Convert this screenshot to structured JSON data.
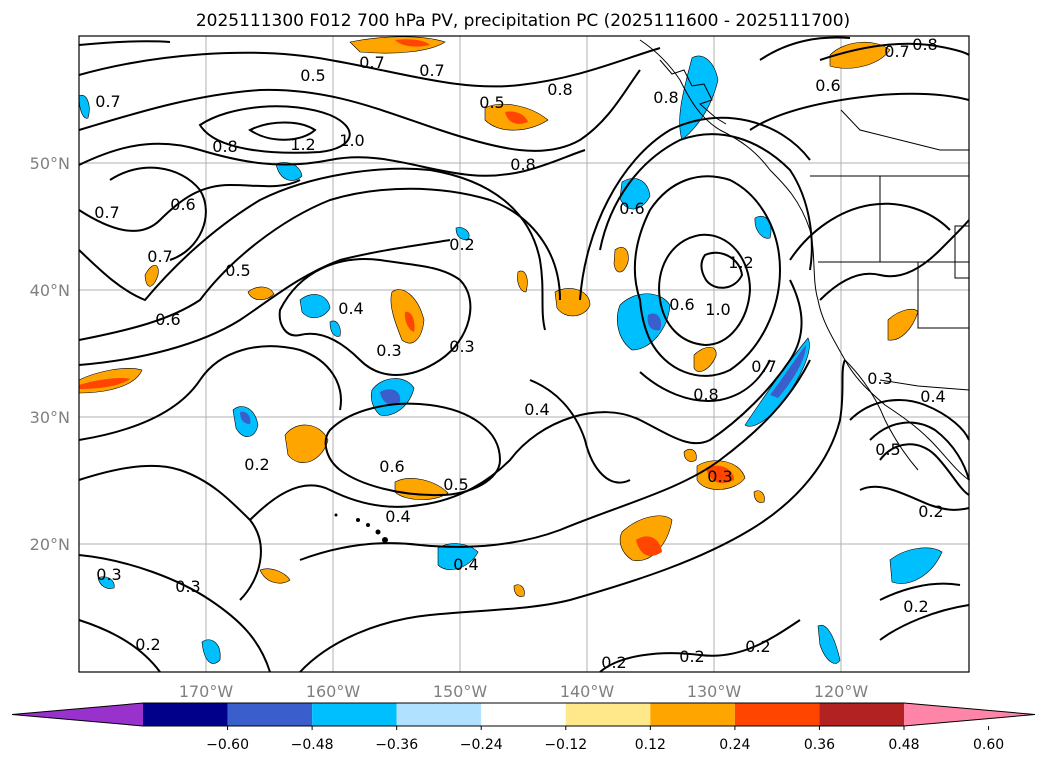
{
  "figure": {
    "title": "2025111300 F012 700 hPa PV, precipitation PC (2025111600 - 2025111700)"
  },
  "map": {
    "lat_ticks": [
      "50°N",
      "40°N",
      "30°N",
      "20°N"
    ],
    "lon_ticks": [
      "170°W",
      "160°W",
      "150°W",
      "140°W",
      "130°W",
      "120°W"
    ],
    "grid": true,
    "contour_labels": [
      "0.5",
      "0.7",
      "0.8",
      "0.6",
      "0.7",
      "0.5",
      "0.8",
      "0.8",
      "0.7",
      "0.7",
      "0.8",
      "1.2",
      "1.0",
      "0.6",
      "0.7",
      "0.7",
      "0.5",
      "0.6",
      "0.8",
      "0.2",
      "0.6",
      "0.4",
      "1.2",
      "1.0",
      "0.6",
      "0.3",
      "0.3",
      "0.4",
      "0.7",
      "0.8",
      "0.3",
      "0.4",
      "0.2",
      "0.6",
      "0.5",
      "0.4",
      "0.3",
      "0.5",
      "0.4",
      "0.3",
      "0.3",
      "0.2",
      "0.2",
      "0.2",
      "0.2",
      "0.2",
      "0.2"
    ]
  },
  "colorbar": {
    "ticks": [
      "−0.60",
      "−0.48",
      "−0.36",
      "−0.24",
      "−0.12",
      "0.12",
      "0.24",
      "0.36",
      "0.48",
      "0.60"
    ],
    "colors": [
      "#9932cc",
      "#00008b",
      "#3a5fcd",
      "#00bfff",
      "#b0e2ff",
      "#ffffff",
      "#ffe88a",
      "#ffa500",
      "#ff4500",
      "#b22222",
      "#ff85a8"
    ]
  }
}
